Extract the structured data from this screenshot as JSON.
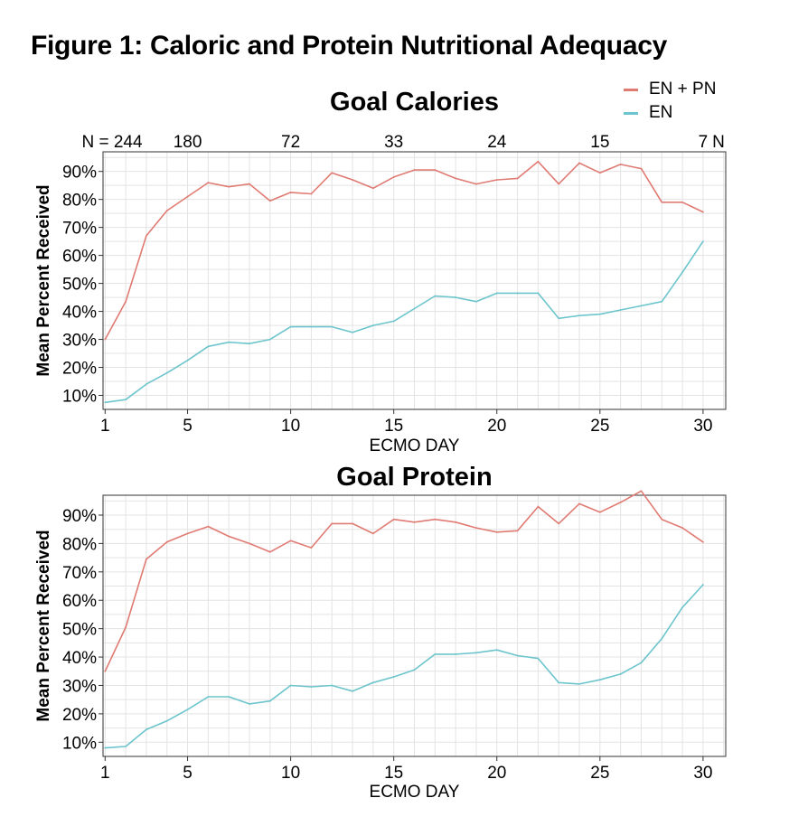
{
  "figure_title": "Figure 1: Caloric and Protein Nutritional Adequacy",
  "colors": {
    "en_pn": "#e07b73",
    "en": "#6cc5cc",
    "grid": "#e3e3e3",
    "frame": "#555555"
  },
  "legend": [
    {
      "label": "EN + PN",
      "color": "#e07b73"
    },
    {
      "label": "EN",
      "color": "#6cc5cc"
    }
  ],
  "chart_data": [
    {
      "type": "line",
      "title": "Goal Calories",
      "xlabel": "ECMO DAY",
      "ylabel": "Mean Percent Received",
      "xlim": [
        0.9,
        31.1
      ],
      "ylim": [
        5,
        97
      ],
      "x_ticks": [
        1,
        5,
        10,
        15,
        20,
        25,
        30
      ],
      "y_ticks": [
        10,
        20,
        30,
        40,
        50,
        60,
        70,
        80,
        90
      ],
      "y_tick_labels": [
        "10%",
        "20%",
        "30%",
        "40%",
        "50%",
        "60%",
        "70%",
        "80%",
        "90%"
      ],
      "n_label": "N",
      "n_counts": [
        {
          "day": 1,
          "label": "N = 244"
        },
        {
          "day": 5,
          "label": "180"
        },
        {
          "day": 10,
          "label": "72"
        },
        {
          "day": 15,
          "label": "33"
        },
        {
          "day": 20,
          "label": "24"
        },
        {
          "day": 25,
          "label": "15"
        },
        {
          "day": 30,
          "label": "7"
        }
      ],
      "grid": true,
      "x": [
        1,
        2,
        3,
        4,
        5,
        6,
        7,
        8,
        9,
        10,
        11,
        12,
        13,
        14,
        15,
        16,
        17,
        18,
        19,
        20,
        21,
        22,
        23,
        24,
        25,
        26,
        27,
        28,
        29,
        30
      ],
      "series": [
        {
          "name": "EN + PN",
          "color": "#e07b73",
          "values": [
            30,
            43.5,
            67,
            76,
            81,
            86,
            84.5,
            85.5,
            79.5,
            82.5,
            82,
            89.5,
            87,
            84,
            88,
            90.5,
            90.5,
            87.5,
            85.5,
            87,
            87.5,
            93.5,
            85.5,
            93,
            89.5,
            92.5,
            91,
            79,
            79,
            75.5
          ]
        },
        {
          "name": "EN",
          "color": "#6cc5cc",
          "values": [
            7.5,
            8.5,
            14,
            18,
            22.5,
            27.5,
            29,
            28.5,
            30,
            34.5,
            34.5,
            34.5,
            32.5,
            35,
            36.5,
            41,
            45.5,
            45,
            43.5,
            46.5,
            46.5,
            46.5,
            37.5,
            38.5,
            39,
            40.5,
            42,
            43.5,
            54,
            65
          ]
        }
      ]
    },
    {
      "type": "line",
      "title": "Goal Protein",
      "xlabel": "ECMO DAY",
      "ylabel": "Mean Percent Received",
      "xlim": [
        0.9,
        31.1
      ],
      "ylim": [
        5,
        97
      ],
      "x_ticks": [
        1,
        5,
        10,
        15,
        20,
        25,
        30
      ],
      "y_ticks": [
        10,
        20,
        30,
        40,
        50,
        60,
        70,
        80,
        90
      ],
      "y_tick_labels": [
        "10%",
        "20%",
        "30%",
        "40%",
        "50%",
        "60%",
        "70%",
        "80%",
        "90%"
      ],
      "grid": true,
      "x": [
        1,
        2,
        3,
        4,
        5,
        6,
        7,
        8,
        9,
        10,
        11,
        12,
        13,
        14,
        15,
        16,
        17,
        18,
        19,
        20,
        21,
        22,
        23,
        24,
        25,
        26,
        27,
        28,
        29,
        30
      ],
      "series": [
        {
          "name": "EN + PN",
          "color": "#e07b73",
          "values": [
            35,
            50.5,
            74.5,
            80.5,
            83.5,
            86,
            82.5,
            80,
            77,
            81,
            78.5,
            87,
            87,
            83.5,
            88.5,
            87.5,
            88.5,
            87.5,
            85.5,
            84,
            84.5,
            93,
            87,
            94,
            91,
            94.5,
            98.5,
            88.5,
            85.5,
            80.5
          ]
        },
        {
          "name": "EN",
          "color": "#6cc5cc",
          "values": [
            8,
            8.5,
            14.5,
            17.5,
            21.5,
            26,
            26,
            23.5,
            24.5,
            30,
            29.5,
            30,
            28,
            31,
            33,
            35.5,
            41,
            41,
            41.5,
            42.5,
            40.5,
            39.5,
            31,
            30.5,
            32,
            34,
            38,
            46.5,
            57.5,
            65.5
          ]
        }
      ]
    }
  ]
}
